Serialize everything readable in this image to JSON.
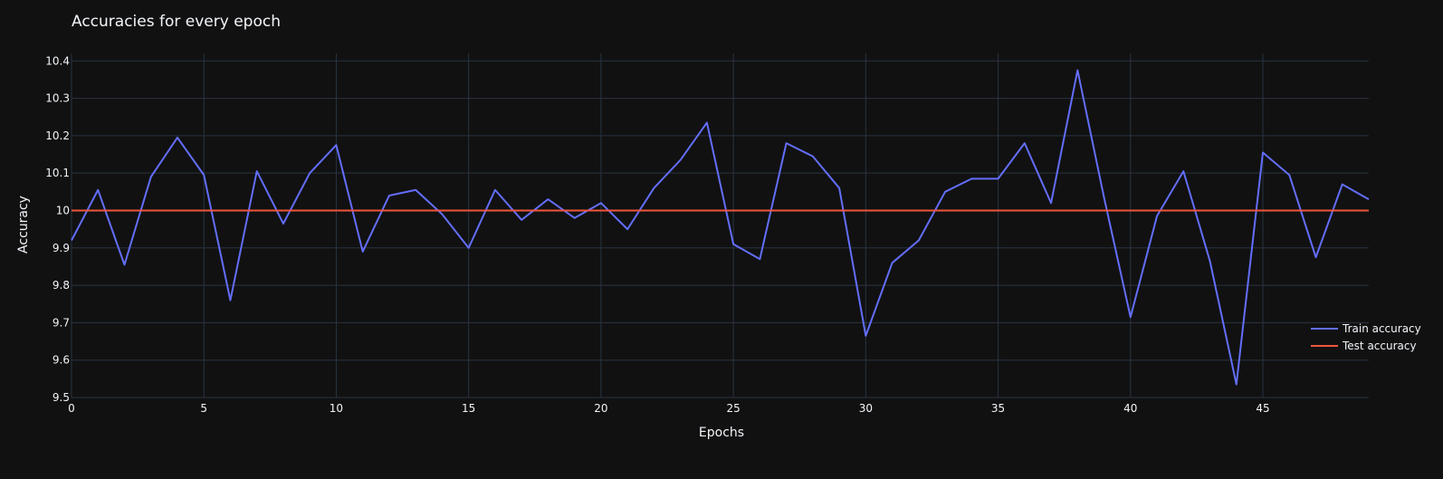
{
  "chart_data": {
    "type": "line",
    "title": "Accuracies for every epoch",
    "xlabel": "Epochs",
    "ylabel": "Accuracy",
    "xlim": [
      0,
      49
    ],
    "ylim": [
      9.5,
      10.42
    ],
    "x_ticks": [
      0,
      5,
      10,
      15,
      20,
      25,
      30,
      35,
      40,
      45
    ],
    "y_ticks": [
      "9.5",
      "9.6",
      "9.7",
      "9.8",
      "9.9",
      "10",
      "10.1",
      "10.2",
      "10.3",
      "10.4"
    ],
    "grid": true,
    "legend_position": "bottom-right",
    "x": [
      0,
      1,
      2,
      3,
      4,
      5,
      6,
      7,
      8,
      9,
      10,
      11,
      12,
      13,
      14,
      15,
      16,
      17,
      18,
      19,
      20,
      21,
      22,
      23,
      24,
      25,
      26,
      27,
      28,
      29,
      30,
      31,
      32,
      33,
      34,
      35,
      36,
      37,
      38,
      39,
      40,
      41,
      42,
      43,
      44,
      45,
      46,
      47,
      48,
      49
    ],
    "series": [
      {
        "name": "Train accuracy",
        "color": "#636efa",
        "values": [
          9.92,
          10.055,
          9.855,
          10.09,
          10.195,
          10.095,
          9.76,
          10.105,
          9.965,
          10.1,
          10.175,
          9.89,
          10.04,
          10.055,
          9.99,
          9.9,
          10.055,
          9.975,
          10.03,
          9.98,
          10.02,
          9.95,
          10.06,
          10.135,
          10.235,
          9.91,
          9.87,
          10.18,
          10.145,
          10.06,
          9.665,
          9.86,
          9.92,
          10.05,
          10.085,
          10.085,
          10.18,
          10.02,
          10.375,
          10.035,
          9.715,
          9.985,
          10.105,
          9.865,
          9.535,
          10.155,
          10.095,
          9.875,
          10.07,
          10.03
        ]
      },
      {
        "name": "Test accuracy",
        "color": "#ef553b",
        "values": [
          10,
          10,
          10,
          10,
          10,
          10,
          10,
          10,
          10,
          10,
          10,
          10,
          10,
          10,
          10,
          10,
          10,
          10,
          10,
          10,
          10,
          10,
          10,
          10,
          10,
          10,
          10,
          10,
          10,
          10,
          10,
          10,
          10,
          10,
          10,
          10,
          10,
          10,
          10,
          10,
          10,
          10,
          10,
          10,
          10,
          10,
          10,
          10,
          10,
          10
        ]
      }
    ]
  }
}
